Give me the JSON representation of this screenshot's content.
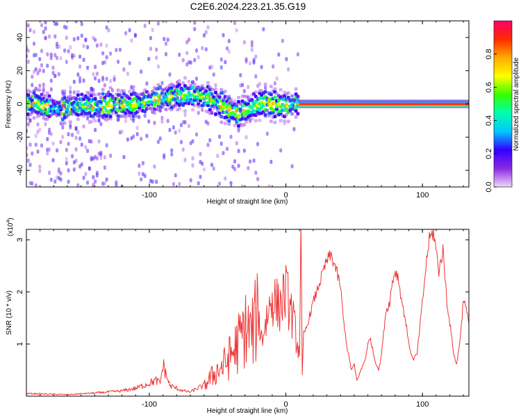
{
  "title": "C2E6.2024.223.21.35.G19",
  "chart_data": [
    {
      "type": "heatmap",
      "title": "",
      "xlabel": "Height of straight line (km)",
      "ylabel": "Frequency (Hz)",
      "xlim": [
        -190,
        134
      ],
      "ylim": [
        -50,
        50
      ],
      "xticks": [
        -100,
        0,
        100
      ],
      "yticks": [
        -40,
        -20,
        0,
        20,
        40
      ],
      "colorbar": {
        "label": "Normalized spectral amplitude",
        "range": [
          0,
          1
        ],
        "ticks": [
          0.0,
          0.2,
          0.4,
          0.6,
          0.8
        ],
        "colors": [
          "#f0d8f8",
          "#8a2be2",
          "#3300ff",
          "#00c8ff",
          "#00ffb0",
          "#33ff00",
          "#ffff00",
          "#ffaa00",
          "#ff2a00",
          "#ff0066"
        ]
      },
      "ridge": [
        {
          "x": -185,
          "y": 1
        },
        {
          "x": -170,
          "y": -3
        },
        {
          "x": -150,
          "y": -1
        },
        {
          "x": -130,
          "y": -1
        },
        {
          "x": -110,
          "y": 0
        },
        {
          "x": -100,
          "y": 2
        },
        {
          "x": -85,
          "y": 4
        },
        {
          "x": -70,
          "y": 6
        },
        {
          "x": -55,
          "y": 3
        },
        {
          "x": -45,
          "y": -2
        },
        {
          "x": -35,
          "y": -6
        },
        {
          "x": -25,
          "y": -2
        },
        {
          "x": -15,
          "y": 1
        },
        {
          "x": -5,
          "y": -1
        },
        {
          "x": 10,
          "y": 0
        },
        {
          "x": 50,
          "y": 0
        },
        {
          "x": 134,
          "y": 0
        }
      ]
    },
    {
      "type": "line",
      "title": "",
      "xlabel": "Height of straight line (km)",
      "ylabel": "SNR (10 * v/v)",
      "y_multiplier": "(x10",
      "y_multiplier_exp": "4",
      "y_multiplier_close": ")",
      "xlim": [
        -190,
        134
      ],
      "ylim": [
        0,
        3.2
      ],
      "xticks": [
        -100,
        0,
        100
      ],
      "yticks": [
        1,
        2,
        3
      ],
      "color": "#ee3333",
      "x": [
        -190,
        -160,
        -140,
        -120,
        -110,
        -100,
        -95,
        -92,
        -90,
        -85,
        -80,
        -75,
        -70,
        -65,
        -60,
        -55,
        -50,
        -45,
        -40,
        -35,
        -30,
        -25,
        -20,
        -18,
        -15,
        -10,
        -5,
        0,
        5,
        10,
        11,
        12,
        13,
        15,
        20,
        25,
        30,
        33,
        36,
        40,
        42,
        45,
        48,
        50,
        52,
        55,
        58,
        60,
        62,
        65,
        68,
        70,
        73,
        76,
        78,
        80,
        82,
        85,
        88,
        90,
        93,
        96,
        98,
        100,
        103,
        105,
        108,
        110,
        112,
        115,
        118,
        120,
        123,
        125,
        128,
        130,
        134
      ],
      "y": [
        0.05,
        0.03,
        0.06,
        0.1,
        0.15,
        0.25,
        0.3,
        0.25,
        0.6,
        0.2,
        0.15,
        0.1,
        0.08,
        0.15,
        0.2,
        0.35,
        0.5,
        0.6,
        0.8,
        1.0,
        1.3,
        1.2,
        1.6,
        1.1,
        1.4,
        1.9,
        1.7,
        2.0,
        1.5,
        0.8,
        3.2,
        0.4,
        1.2,
        1.3,
        1.8,
        2.2,
        2.6,
        2.7,
        2.5,
        2.1,
        1.5,
        0.9,
        0.5,
        0.6,
        0.3,
        0.5,
        0.7,
        1.0,
        1.1,
        0.7,
        0.5,
        0.8,
        1.6,
        1.8,
        2.2,
        2.4,
        2.3,
        1.8,
        1.4,
        1.0,
        0.7,
        0.8,
        1.3,
        1.8,
        2.6,
        3.0,
        3.15,
        2.8,
        2.4,
        2.8,
        1.8,
        1.4,
        0.8,
        0.6,
        1.2,
        1.9,
        1.4
      ]
    }
  ]
}
